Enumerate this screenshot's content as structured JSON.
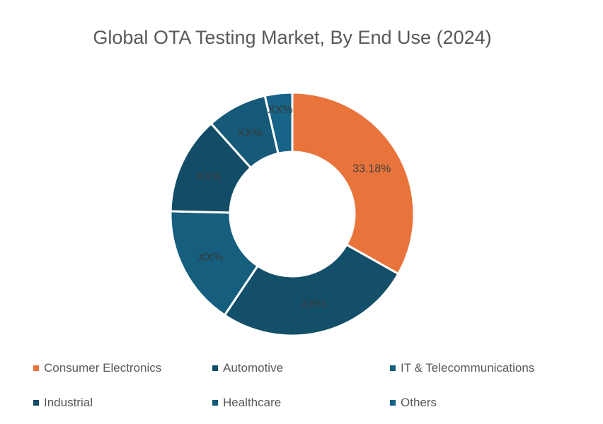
{
  "chart_data": {
    "type": "pie",
    "variant": "donut",
    "title": "Global OTA Testing Market, By End Use (2024)",
    "categories": [
      "Consumer Electronics",
      "Automotive",
      "IT & Telecommunications",
      "Industrial",
      "Healthcare",
      "Others"
    ],
    "values": [
      33.18,
      26.2,
      16.0,
      13.0,
      8.0,
      3.62
    ],
    "data_labels": [
      "33.18%",
      "XX%",
      "XX%",
      "XX%",
      "XX%",
      "XX%"
    ],
    "colors": [
      "#E8743B",
      "#144F6A",
      "#155E7E",
      "#134C66",
      "#155A78",
      "#176488"
    ],
    "legend_position": "bottom"
  }
}
